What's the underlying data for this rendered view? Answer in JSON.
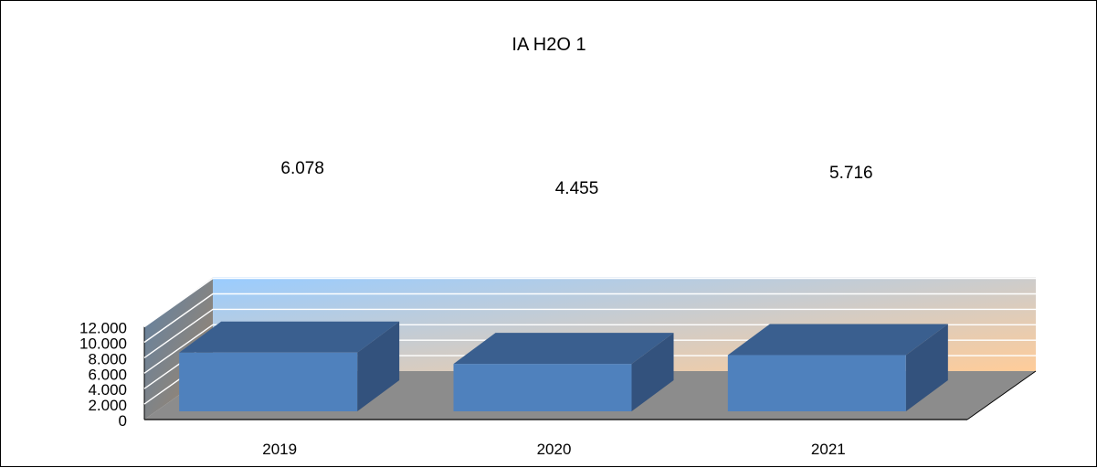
{
  "chart_data": {
    "type": "bar",
    "title": "IA H2O 1",
    "categories": [
      "2019",
      "2020",
      "2021"
    ],
    "values": [
      6.078,
      4.455,
      5.716
    ],
    "data_labels": [
      "6.078",
      "4.455",
      "5.716"
    ],
    "y_ticks": [
      "0",
      "2.000",
      "4.000",
      "6.000",
      "8.000",
      "10.000",
      "12.000"
    ],
    "ylim": [
      0,
      12
    ],
    "xlabel": "",
    "ylabel": "",
    "grid": true,
    "legend": "none",
    "style": "3d-column",
    "colors": {
      "bar_front": "#4f81bd",
      "bar_top": "#3a5f8f",
      "bar_side": "#33527d",
      "floor": "#8c8c8c",
      "back_wall_top": "#99ccff",
      "back_wall_bottom": "#ffcc99",
      "side_wall": "#5f7f9c",
      "gridline": "#ffffff"
    }
  }
}
